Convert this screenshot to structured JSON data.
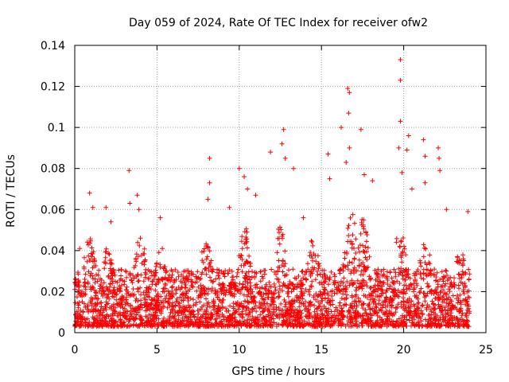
{
  "chart_data": {
    "type": "scatter",
    "title": "Day 059 of 2024, Rate Of TEC Index for receiver ofw2",
    "xlabel": "GPS time / hours",
    "ylabel": "ROTI / TECUs",
    "xlim": [
      0,
      25
    ],
    "ylim": [
      0,
      0.14
    ],
    "xticks": [
      0,
      5,
      10,
      15,
      20,
      25
    ],
    "xtick_labels": [
      "0",
      "5",
      "10",
      "15",
      "20",
      "25"
    ],
    "yticks": [
      0,
      0.02,
      0.04,
      0.06,
      0.08,
      0.1,
      0.12,
      0.14
    ],
    "ytick_labels": [
      "0",
      "0.02",
      "0.04",
      "0.06",
      "0.08",
      "0.1",
      "0.12",
      "0.14"
    ],
    "grid": true,
    "marker": "+",
    "series": [
      {
        "name": "ROTI",
        "color": "#ff0000",
        "outliers": [
          {
            "x": 0.3,
            "y": 0.041
          },
          {
            "x": 0.9,
            "y": 0.068
          },
          {
            "x": 1.1,
            "y": 0.061
          },
          {
            "x": 1.9,
            "y": 0.061
          },
          {
            "x": 2.2,
            "y": 0.054
          },
          {
            "x": 3.3,
            "y": 0.079
          },
          {
            "x": 3.35,
            "y": 0.063
          },
          {
            "x": 3.8,
            "y": 0.067
          },
          {
            "x": 3.9,
            "y": 0.06
          },
          {
            "x": 5.2,
            "y": 0.056
          },
          {
            "x": 8.2,
            "y": 0.085
          },
          {
            "x": 8.2,
            "y": 0.073
          },
          {
            "x": 8.1,
            "y": 0.065
          },
          {
            "x": 9.4,
            "y": 0.061
          },
          {
            "x": 10.0,
            "y": 0.08
          },
          {
            "x": 10.3,
            "y": 0.076
          },
          {
            "x": 10.5,
            "y": 0.07
          },
          {
            "x": 11.0,
            "y": 0.067
          },
          {
            "x": 11.9,
            "y": 0.088
          },
          {
            "x": 12.7,
            "y": 0.099
          },
          {
            "x": 12.6,
            "y": 0.092
          },
          {
            "x": 12.8,
            "y": 0.085
          },
          {
            "x": 13.3,
            "y": 0.08
          },
          {
            "x": 13.9,
            "y": 0.056
          },
          {
            "x": 15.4,
            "y": 0.087
          },
          {
            "x": 15.5,
            "y": 0.075
          },
          {
            "x": 16.2,
            "y": 0.1
          },
          {
            "x": 16.6,
            "y": 0.119
          },
          {
            "x": 16.7,
            "y": 0.117
          },
          {
            "x": 16.65,
            "y": 0.107
          },
          {
            "x": 16.7,
            "y": 0.09
          },
          {
            "x": 16.5,
            "y": 0.083
          },
          {
            "x": 17.4,
            "y": 0.099
          },
          {
            "x": 17.6,
            "y": 0.077
          },
          {
            "x": 18.1,
            "y": 0.074
          },
          {
            "x": 19.8,
            "y": 0.133
          },
          {
            "x": 19.8,
            "y": 0.123
          },
          {
            "x": 19.8,
            "y": 0.103
          },
          {
            "x": 19.7,
            "y": 0.09
          },
          {
            "x": 19.9,
            "y": 0.078
          },
          {
            "x": 20.3,
            "y": 0.096
          },
          {
            "x": 20.2,
            "y": 0.089
          },
          {
            "x": 20.5,
            "y": 0.07
          },
          {
            "x": 21.2,
            "y": 0.094
          },
          {
            "x": 21.3,
            "y": 0.086
          },
          {
            "x": 21.3,
            "y": 0.073
          },
          {
            "x": 22.1,
            "y": 0.09
          },
          {
            "x": 22.15,
            "y": 0.085
          },
          {
            "x": 22.2,
            "y": 0.079
          },
          {
            "x": 22.6,
            "y": 0.06
          },
          {
            "x": 23.9,
            "y": 0.059
          }
        ]
      }
    ]
  }
}
